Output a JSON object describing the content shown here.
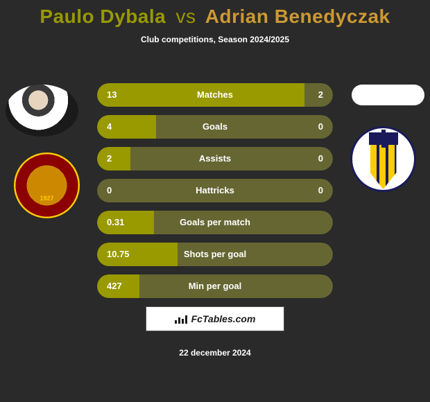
{
  "title": {
    "player1": "Paulo Dybala",
    "vs": "vs",
    "player2": "Adrian Benedyczak"
  },
  "subtitle": "Club competitions, Season 2024/2025",
  "colors": {
    "p1": "#999900",
    "p2": "#cc9933",
    "bar_bg": "#666633",
    "bar_fill": "#999900",
    "text": "#ffffff"
  },
  "stats": [
    {
      "label": "Matches",
      "v1": "13",
      "v2": "2",
      "fill_pct": 88
    },
    {
      "label": "Goals",
      "v1": "4",
      "v2": "0",
      "fill_pct": 25
    },
    {
      "label": "Assists",
      "v1": "2",
      "v2": "0",
      "fill_pct": 14
    },
    {
      "label": "Hattricks",
      "v1": "0",
      "v2": "0",
      "fill_pct": 0
    },
    {
      "label": "Goals per match",
      "v1": "0.31",
      "v2": "",
      "fill_pct": 24
    },
    {
      "label": "Shots per goal",
      "v1": "10.75",
      "v2": "",
      "fill_pct": 34
    },
    {
      "label": "Min per goal",
      "v1": "427",
      "v2": "",
      "fill_pct": 18
    }
  ],
  "footer": {
    "brand": "FcTables.com",
    "date": "22 december 2024"
  }
}
